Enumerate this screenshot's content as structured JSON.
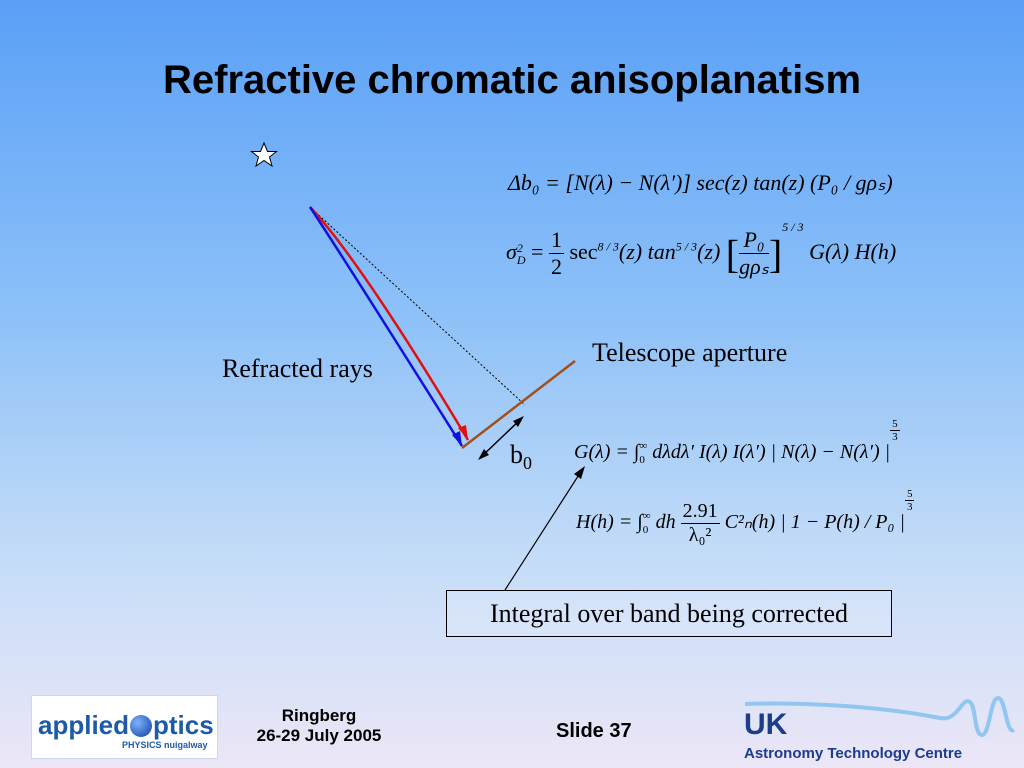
{
  "slide": {
    "title": "Refractive chromatic anisoplanatism",
    "labels": {
      "refracted_rays": "Refracted rays",
      "telescope_aperture": "Telescope aperture",
      "b0_base": "b",
      "b0_sub": "0",
      "integral_box": "Integral over band being corrected"
    },
    "equations": {
      "delta_b0": "Δb₀ = [N(λ) − N(λ′)] sec(z) tan(z) (P₀ / gρₛ)",
      "sigma_lhs": "σ",
      "sigma_sup": "2",
      "sigma_sub": "D",
      "sigma_eq": "=",
      "sigma_half_num": "1",
      "sigma_half_den": "2",
      "sigma_sec": "sec",
      "sigma_sec_pow": "8 / 3",
      "sigma_z1": "(z) tan",
      "sigma_tan_pow": "5 / 3",
      "sigma_z2": "(z)",
      "sigma_frac_num": "P₀",
      "sigma_frac_den": "gρₛ",
      "sigma_bracket_pow": "5 / 3",
      "sigma_tail": "G(λ) H(h)",
      "g_lhs": "G(λ) = ∫",
      "g_lim_low": "0",
      "g_lim_high": "∞",
      "g_body": "dλdλ′ I(λ) I(λ′) | N(λ) − N(λ′) |",
      "g_pow_num": "5",
      "g_pow_den": "3",
      "h_lhs": "H(h) = ∫",
      "h_lim_low": "0",
      "h_lim_high": "∞",
      "h_dh": "dh",
      "h_frac_num": "2.91",
      "h_frac_den": "λ₀²",
      "h_body": "C²ₙ(h) | 1 − P(h) / P₀ |",
      "h_pow_num": "5",
      "h_pow_den": "3"
    },
    "footer": {
      "logo_main_1": "applied",
      "logo_main_2": "ptics",
      "logo_sub": "PHYSICS nuigalway",
      "venue": "Ringberg",
      "dates": "26-29 July 2005",
      "slide_number": "Slide 37",
      "uk_logo": "UK",
      "uk_org": "Astronomy Technology Centre"
    },
    "colors": {
      "red_ray": "#e01010",
      "blue_ray": "#1010e0",
      "aperture": "#a0501a"
    },
    "icons": [
      "star-icon",
      "logo-o-icon",
      "wave-icon"
    ]
  }
}
